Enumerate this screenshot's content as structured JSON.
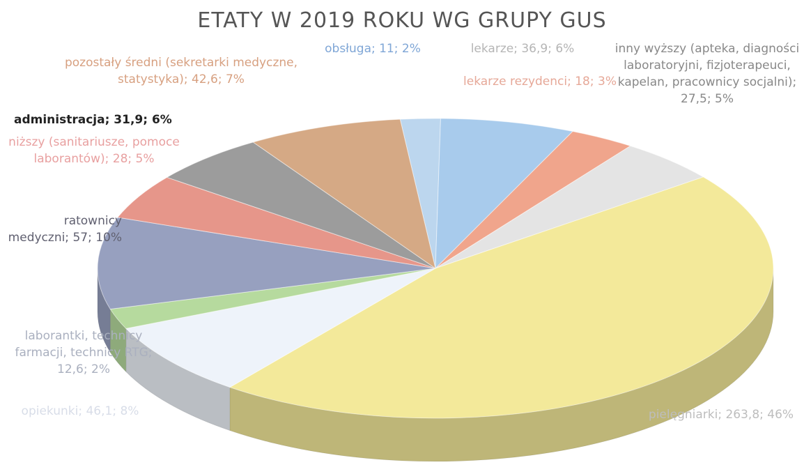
{
  "chart_data": {
    "type": "pie3d",
    "title": "ETATY W 2019 ROKU WG GRUPY GUS",
    "labels": [
      "obsługa; 11; 2%",
      "lekarze; 36,9; 6%",
      "lekarze rezydenci; 18; 3%",
      "inny wyższy (apteka, diagności laboratoryjni, fizjoterapeuci, kapelan, pracownicy socjalni); 27,5; 5%",
      "pielęgniarki; 263,8; 46%",
      "opiekunki; 46,1; 8%",
      "laborantki, technicy farmacji, technicy RTG; 12,6; 2%",
      "ratownicy medyczni; 57; 10%",
      "niższy (sanitariusze, pomoce laborantów); 28; 5%",
      "administracja; 31,9; 6%",
      "pozostały średni (sekretarki medyczne, statystyka); 42,6; 7%"
    ],
    "values": [
      11,
      36.9,
      18,
      27.5,
      263.8,
      46.1,
      12.6,
      57,
      28,
      31.9,
      42.6
    ],
    "colors": [
      "#bcd6ee",
      "#a8cbec",
      "#f0a58c",
      "#e4e4e4",
      "#f3e99a",
      "#eef3fa",
      "#b6da9e",
      "#97a0bf",
      "#e6968a",
      "#9c9c9c",
      "#d5a985"
    ]
  }
}
